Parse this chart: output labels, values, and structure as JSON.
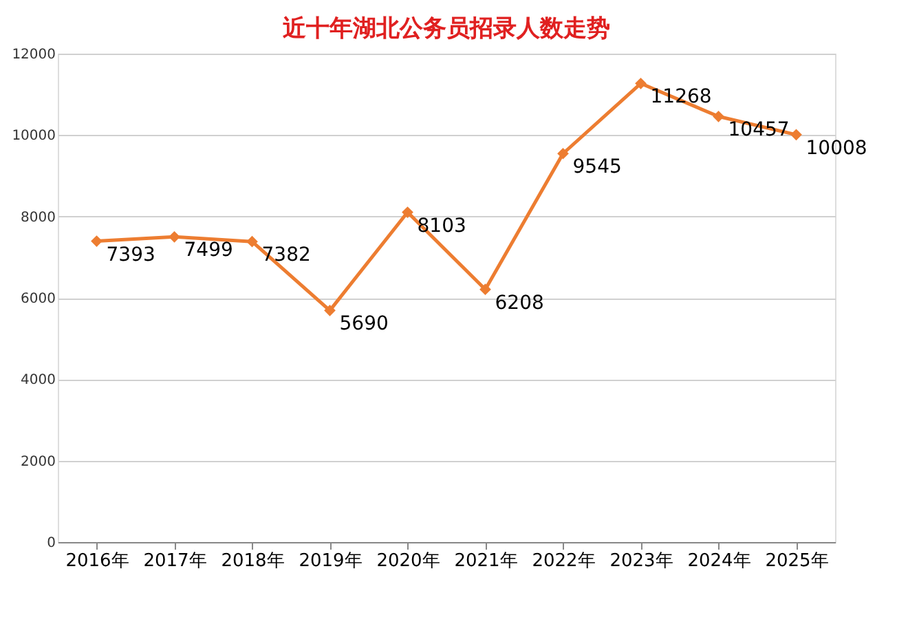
{
  "chart_data": {
    "type": "line",
    "title": "近十年湖北公务员招录人数走势",
    "categories": [
      "2016年",
      "2017年",
      "2018年",
      "2019年",
      "2020年",
      "2021年",
      "2022年",
      "2023年",
      "2024年",
      "2025年"
    ],
    "series": [
      {
        "color": "#ed7d31",
        "values": [
          7393,
          7499,
          7382,
          5690,
          8103,
          6208,
          9545,
          11268,
          10457,
          10008
        ]
      }
    ],
    "ylim": [
      0,
      12000
    ],
    "yticks": [
      0,
      2000,
      4000,
      6000,
      8000,
      10000,
      12000
    ],
    "grid": "y",
    "marker": "diamond",
    "line_style": "solid",
    "data_labels": true
  }
}
